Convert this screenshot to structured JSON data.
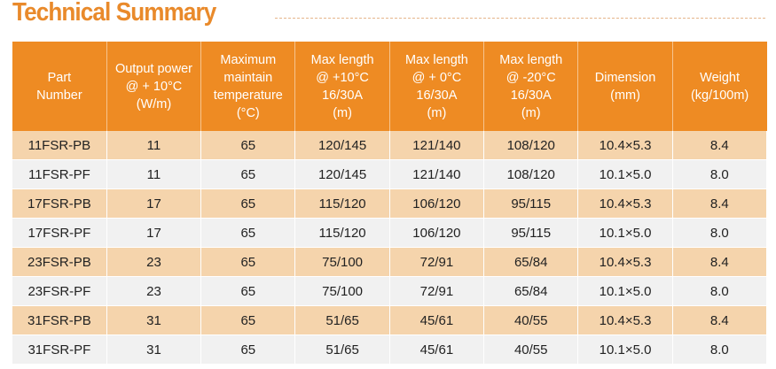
{
  "title": "Technical Summary",
  "colors": {
    "accent": "#EE8B23",
    "band": "#F5D4AC",
    "alt": "#F1F1F1"
  },
  "headers": [
    [
      "Part",
      "Number"
    ],
    [
      "Output power",
      "@ + 10°C",
      "(W/m)"
    ],
    [
      "Maximum",
      "maintain",
      "temperature",
      "(°C)"
    ],
    [
      "Max length",
      "@ +10°C",
      "16/30A",
      "(m)"
    ],
    [
      "Max length",
      "@ + 0°C",
      "16/30A",
      "(m)"
    ],
    [
      "Max length",
      "@ -20°C",
      "16/30A",
      "(m)"
    ],
    [
      "Dimension",
      "(mm)"
    ],
    [
      "Weight",
      "(kg/100m)"
    ]
  ],
  "rows": [
    [
      "11FSR-PB",
      "11",
      "65",
      "120/145",
      "121/140",
      "108/120",
      "10.4×5.3",
      "8.4"
    ],
    [
      "11FSR-PF",
      "11",
      "65",
      "120/145",
      "121/140",
      "108/120",
      "10.1×5.0",
      "8.0"
    ],
    [
      "17FSR-PB",
      "17",
      "65",
      "115/120",
      "106/120",
      "95/115",
      "10.4×5.3",
      "8.4"
    ],
    [
      "17FSR-PF",
      "17",
      "65",
      "115/120",
      "106/120",
      "95/115",
      "10.1×5.0",
      "8.0"
    ],
    [
      "23FSR-PB",
      "23",
      "65",
      "75/100",
      "72/91",
      "65/84",
      "10.4×5.3",
      "8.4"
    ],
    [
      "23FSR-PF",
      "23",
      "65",
      "75/100",
      "72/91",
      "65/84",
      "10.1×5.0",
      "8.0"
    ],
    [
      "31FSR-PB",
      "31",
      "65",
      "51/65",
      "45/61",
      "40/55",
      "10.4×5.3",
      "8.4"
    ],
    [
      "31FSR-PF",
      "31",
      "65",
      "51/65",
      "45/61",
      "40/55",
      "10.1×5.0",
      "8.0"
    ]
  ]
}
